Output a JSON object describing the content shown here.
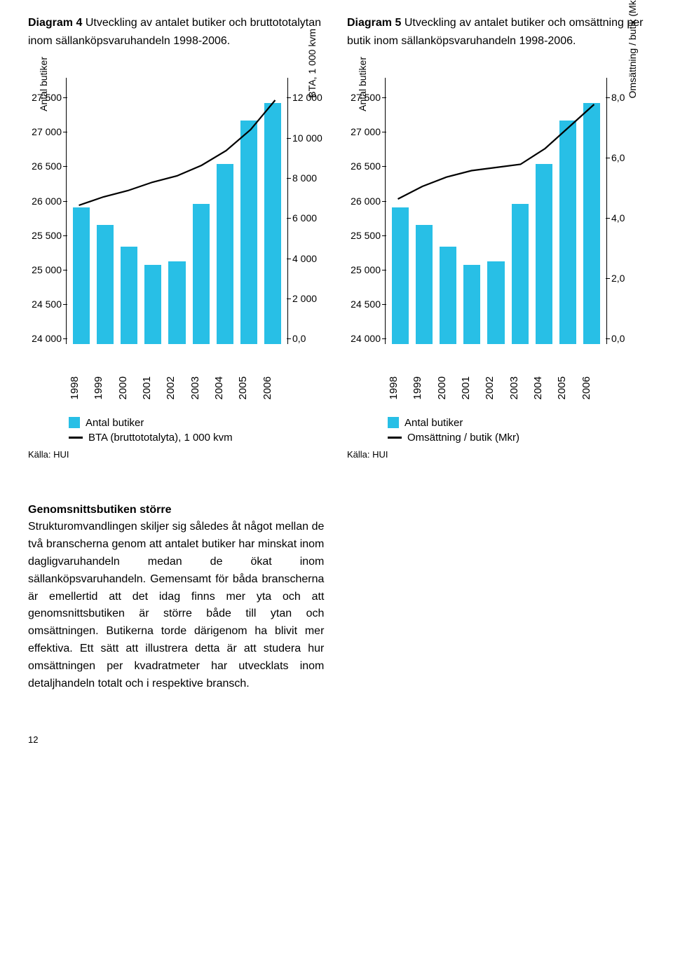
{
  "titles": {
    "left_bold": "Diagram 4",
    "left_rest": " Utveckling av antalet butiker och bruttototalytan inom sällanköpsvaruhandeln 1998-2006.",
    "right_bold": "Diagram 5",
    "right_rest": " Utveckling av antalet butiker och omsättning per butik inom sällanköpsvaruhandeln 1998-2006."
  },
  "chart_left": {
    "type": "bar+line",
    "bar_color": "#28bfe6",
    "line_color": "#000000",
    "line_width": 2.2,
    "years": [
      "1998",
      "1999",
      "2000",
      "2001",
      "2002",
      "2003",
      "2004",
      "2005",
      "2006"
    ],
    "y_left_min": 24000,
    "y_left_max": 27500,
    "y_left_ticks": [
      "27 500",
      "27 000",
      "26 500",
      "26 000",
      "25 500",
      "25 000",
      "24 500",
      "24 000"
    ],
    "y_left_label": "Antal butiker",
    "y_right_min": 0,
    "y_right_max": 12000,
    "y_right_ticks": [
      "12 000",
      "10 000",
      "8 000",
      "6 000",
      "4 000",
      "2 000",
      "0,0"
    ],
    "y_right_label": "BTA, 1 000 kvm",
    "bars_values": [
      25900,
      25650,
      25350,
      25100,
      25150,
      25950,
      26500,
      27100,
      27350
    ],
    "line_values": [
      6600,
      7000,
      7300,
      7700,
      8000,
      8500,
      9200,
      10200,
      11600
    ],
    "legend1": "Antal butiker",
    "legend2": "BTA (bruttototalyta), 1 000 kvm",
    "source": "Källa: HUI"
  },
  "chart_right": {
    "type": "bar+line",
    "bar_color": "#28bfe6",
    "line_color": "#000000",
    "line_width": 2.2,
    "years": [
      "1998",
      "1999",
      "2000",
      "2001",
      "2002",
      "2003",
      "2004",
      "2005",
      "2006"
    ],
    "y_left_min": 24000,
    "y_left_max": 27500,
    "y_left_ticks": [
      "27 500",
      "27 000",
      "26 500",
      "26 000",
      "25 500",
      "25 000",
      "24 500",
      "24 000"
    ],
    "y_left_label": "Antal butiker",
    "y_right_min": 0,
    "y_right_max": 8,
    "y_right_ticks": [
      "8,0",
      "6,0",
      "4,0",
      "2,0",
      "0,0"
    ],
    "y_right_label": "Omsättning / butik (Mkr)",
    "bars_values": [
      25900,
      25650,
      25350,
      25100,
      25150,
      25950,
      26500,
      27100,
      27350
    ],
    "line_values": [
      4.6,
      5.0,
      5.3,
      5.5,
      5.6,
      5.7,
      6.2,
      6.9,
      7.6
    ],
    "legend1": "Antal butiker",
    "legend2": "Omsättning / butik (Mkr)",
    "source": "Källa: HUI"
  },
  "body": {
    "heading": "Genomsnittsbutiken större",
    "text": "Strukturomvandlingen skiljer sig således åt något mellan de två branscherna genom att antalet butiker har minskat inom dagligvaruhandeln medan de ökat inom sällanköpsvaruhandeln. Gemensamt för båda branscherna är emellertid att det idag finns mer yta och att genomsnittsbutiken är större både till ytan och omsättningen. Butikerna torde därigenom ha blivit mer effektiva. Ett sätt att illustrera detta är att studera hur omsättningen per kvadratmeter har utvecklats inom detaljhandeln totalt och i respektive bransch."
  },
  "pagenum": "12"
}
